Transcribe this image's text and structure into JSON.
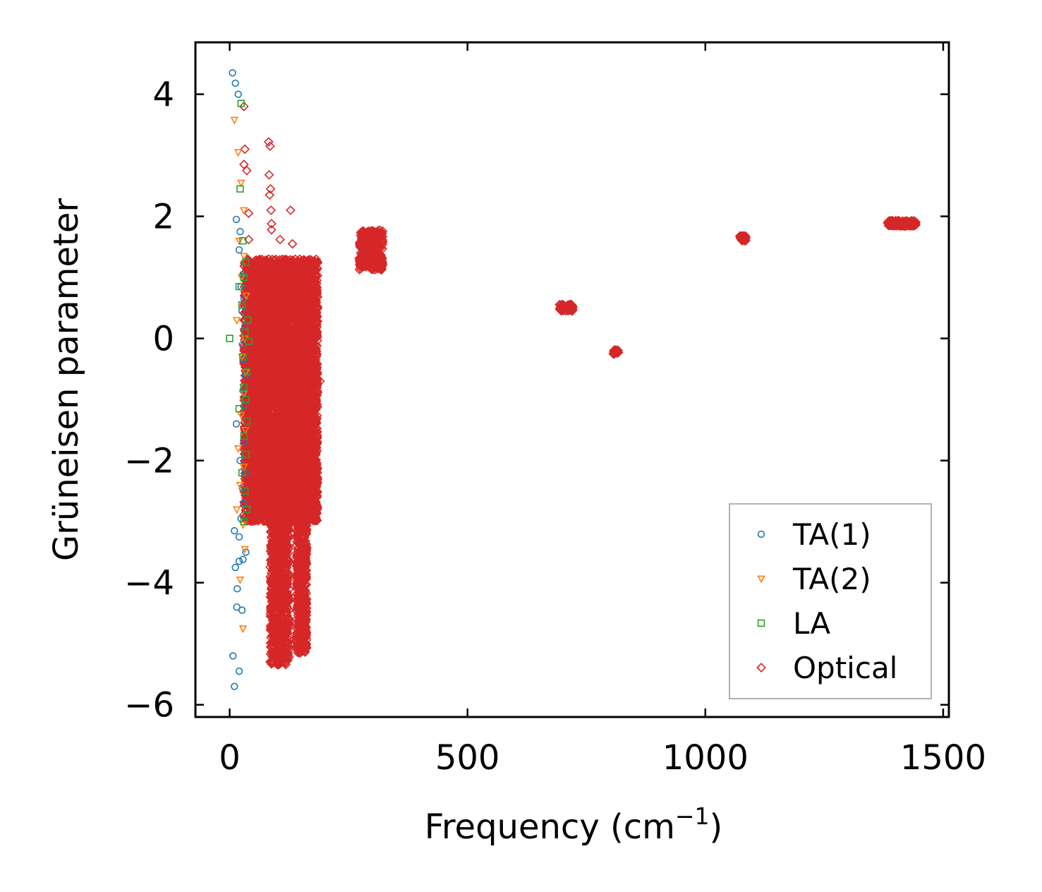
{
  "chart_data": {
    "type": "scatter",
    "title": "",
    "xlabel_base": "Frequency (cm",
    "xlabel_sup": "−1",
    "xlabel_end": ")",
    "ylabel": "Grüneisen parameter",
    "xlim": [
      -72,
      1512
    ],
    "ylim": [
      -6.2,
      4.85
    ],
    "xticks": [
      0,
      500,
      1000,
      1500
    ],
    "xtick_labels": [
      "0",
      "500",
      "1000",
      "1500"
    ],
    "yticks": [
      4,
      2,
      0,
      -2,
      -4,
      -6
    ],
    "ytick_labels": [
      "4",
      "2",
      "0",
      "−2",
      "−4",
      "−6"
    ],
    "grid": false,
    "legend_position": "bottom-right",
    "series": [
      {
        "name": "TA(1)",
        "marker": "circle",
        "color": "#1f77b4",
        "points": [
          [
            6,
            4.35
          ],
          [
            12,
            4.18
          ],
          [
            18,
            4.0
          ],
          [
            14,
            1.95
          ],
          [
            22,
            1.75
          ],
          [
            20,
            1.45
          ],
          [
            28,
            1.05
          ],
          [
            24,
            0.85
          ],
          [
            30,
            0.65
          ],
          [
            26,
            0.45
          ],
          [
            32,
            0.2
          ],
          [
            27,
            -0.1
          ],
          [
            29,
            -0.35
          ],
          [
            33,
            -0.6
          ],
          [
            28,
            -0.85
          ],
          [
            31,
            -1.1
          ],
          [
            14,
            -1.4
          ],
          [
            30,
            -1.7
          ],
          [
            22,
            -2.0
          ],
          [
            33,
            -2.2
          ],
          [
            27,
            -2.45
          ],
          [
            30,
            -2.7
          ],
          [
            24,
            -2.95
          ],
          [
            10,
            -3.15
          ],
          [
            20,
            -3.25
          ],
          [
            34,
            -3.5
          ],
          [
            28,
            -3.62
          ],
          [
            20,
            -3.65
          ],
          [
            12,
            -3.75
          ],
          [
            16,
            -4.1
          ],
          [
            15,
            -4.4
          ],
          [
            26,
            -4.45
          ],
          [
            7,
            -5.2
          ],
          [
            20,
            -5.45
          ],
          [
            10,
            -5.7
          ]
        ]
      },
      {
        "name": "TA(2)",
        "marker": "triangle-down",
        "color": "#ff7f0e",
        "points": [
          [
            10,
            3.58
          ],
          [
            18,
            3.05
          ],
          [
            24,
            2.55
          ],
          [
            30,
            2.1
          ],
          [
            20,
            1.6
          ],
          [
            30,
            1.35
          ],
          [
            25,
            1.0
          ],
          [
            35,
            0.7
          ],
          [
            15,
            0.3
          ],
          [
            32,
            0.0
          ],
          [
            26,
            -0.3
          ],
          [
            34,
            -0.55
          ],
          [
            30,
            -0.9
          ],
          [
            24,
            -1.25
          ],
          [
            33,
            -1.5
          ],
          [
            18,
            -1.8
          ],
          [
            30,
            -2.1
          ],
          [
            22,
            -2.4
          ],
          [
            15,
            -2.8
          ],
          [
            28,
            -3.05
          ],
          [
            32,
            -3.45
          ],
          [
            22,
            -3.95
          ],
          [
            28,
            -4.75
          ]
        ]
      },
      {
        "name": "LA",
        "marker": "square",
        "color": "#2ca02c",
        "points": [
          [
            24,
            3.85
          ],
          [
            22,
            2.45
          ],
          [
            28,
            1.6
          ],
          [
            34,
            1.25
          ],
          [
            30,
            1.0
          ],
          [
            20,
            0.85
          ],
          [
            26,
            0.55
          ],
          [
            38,
            0.3
          ],
          [
            32,
            0.1
          ],
          [
            0,
            0.0
          ],
          [
            40,
            -0.05
          ],
          [
            28,
            -0.3
          ],
          [
            36,
            -0.55
          ],
          [
            30,
            -0.8
          ],
          [
            34,
            -1.0
          ],
          [
            20,
            -1.15
          ],
          [
            36,
            -1.35
          ],
          [
            30,
            -1.6
          ],
          [
            34,
            -1.9
          ],
          [
            26,
            -2.2
          ],
          [
            32,
            -2.5
          ],
          [
            36,
            -2.8
          ],
          [
            30,
            -3.0
          ]
        ]
      }
    ],
    "optical": {
      "name": "Optical",
      "marker": "diamond",
      "color": "#d62728",
      "clusters": [
        {
          "x_range": [
            30,
            185
          ],
          "y_range": [
            -3.0,
            1.3
          ],
          "count": 6500
        },
        {
          "x_range": [
            85,
            125
          ],
          "y_range": [
            -5.35,
            -3.0
          ],
          "count": 800
        },
        {
          "x_range": [
            140,
            162
          ],
          "y_range": [
            -5.15,
            -3.0
          ],
          "count": 600
        },
        {
          "x_range": [
            272,
            322
          ],
          "y_range": [
            1.12,
            1.78
          ],
          "count": 320
        },
        {
          "x_range": [
            693,
            722
          ],
          "y_range": [
            0.45,
            0.56
          ],
          "count": 60
        },
        {
          "x_range": [
            806,
            818
          ],
          "y_range": [
            -0.26,
            -0.19
          ],
          "count": 25
        },
        {
          "x_range": [
            1072,
            1086
          ],
          "y_range": [
            1.6,
            1.68
          ],
          "count": 40
        },
        {
          "x_range": [
            1383,
            1443
          ],
          "y_range": [
            1.84,
            1.93
          ],
          "count": 180
        }
      ],
      "outliers": [
        [
          82,
          3.22
        ],
        [
          85,
          3.15
        ],
        [
          30,
          3.8
        ],
        [
          32,
          3.1
        ],
        [
          30,
          2.85
        ],
        [
          36,
          2.75
        ],
        [
          83,
          2.68
        ],
        [
          86,
          2.45
        ],
        [
          84,
          2.35
        ],
        [
          87,
          2.1
        ],
        [
          128,
          2.1
        ],
        [
          40,
          2.05
        ],
        [
          88,
          1.88
        ],
        [
          88,
          1.78
        ],
        [
          40,
          1.62
        ],
        [
          106,
          1.62
        ],
        [
          132,
          1.55
        ],
        [
          170,
          1.18
        ],
        [
          172,
          1.05
        ],
        [
          140,
          0.92
        ],
        [
          158,
          0.68
        ],
        [
          180,
          0.55
        ],
        [
          175,
          0.42
        ],
        [
          185,
          0.28
        ],
        [
          190,
          -0.7
        ]
      ]
    }
  }
}
